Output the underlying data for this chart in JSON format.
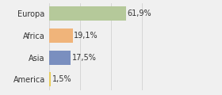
{
  "categories": [
    "Europa",
    "Africa",
    "Asia",
    "America"
  ],
  "values": [
    61.9,
    19.1,
    17.5,
    1.5
  ],
  "labels": [
    "61,9%",
    "19,1%",
    "17,5%",
    "1,5%"
  ],
  "bar_colors": [
    "#b5c99a",
    "#f0b47a",
    "#7a8fbf",
    "#e8cc5a"
  ],
  "background_color": "#f0f0f0",
  "xlim": [
    0,
    100
  ],
  "label_fontsize": 7,
  "cat_fontsize": 7,
  "bar_height": 0.65
}
